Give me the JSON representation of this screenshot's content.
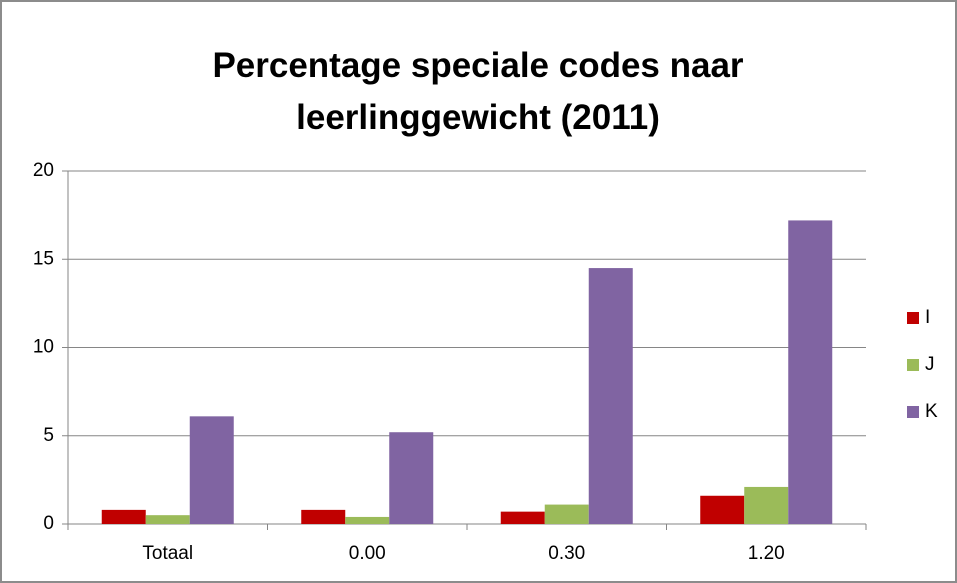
{
  "chart_data": {
    "type": "bar",
    "title": "Percentage speciale codes naar leerlinggewicht (2011)",
    "categories": [
      "Totaal",
      "0.00",
      "0.30",
      "1.20"
    ],
    "series": [
      {
        "name": "I",
        "color": "#c00000",
        "values": [
          0.8,
          0.8,
          0.7,
          1.6
        ]
      },
      {
        "name": "J",
        "color": "#9bbb59",
        "values": [
          0.5,
          0.4,
          1.1,
          2.1
        ]
      },
      {
        "name": "K",
        "color": "#8064a2",
        "values": [
          6.1,
          5.2,
          14.5,
          17.2
        ]
      }
    ],
    "ylim": [
      0,
      20
    ],
    "yticks": [
      0,
      5,
      10,
      15,
      20
    ],
    "grid": true,
    "legend": "right"
  }
}
